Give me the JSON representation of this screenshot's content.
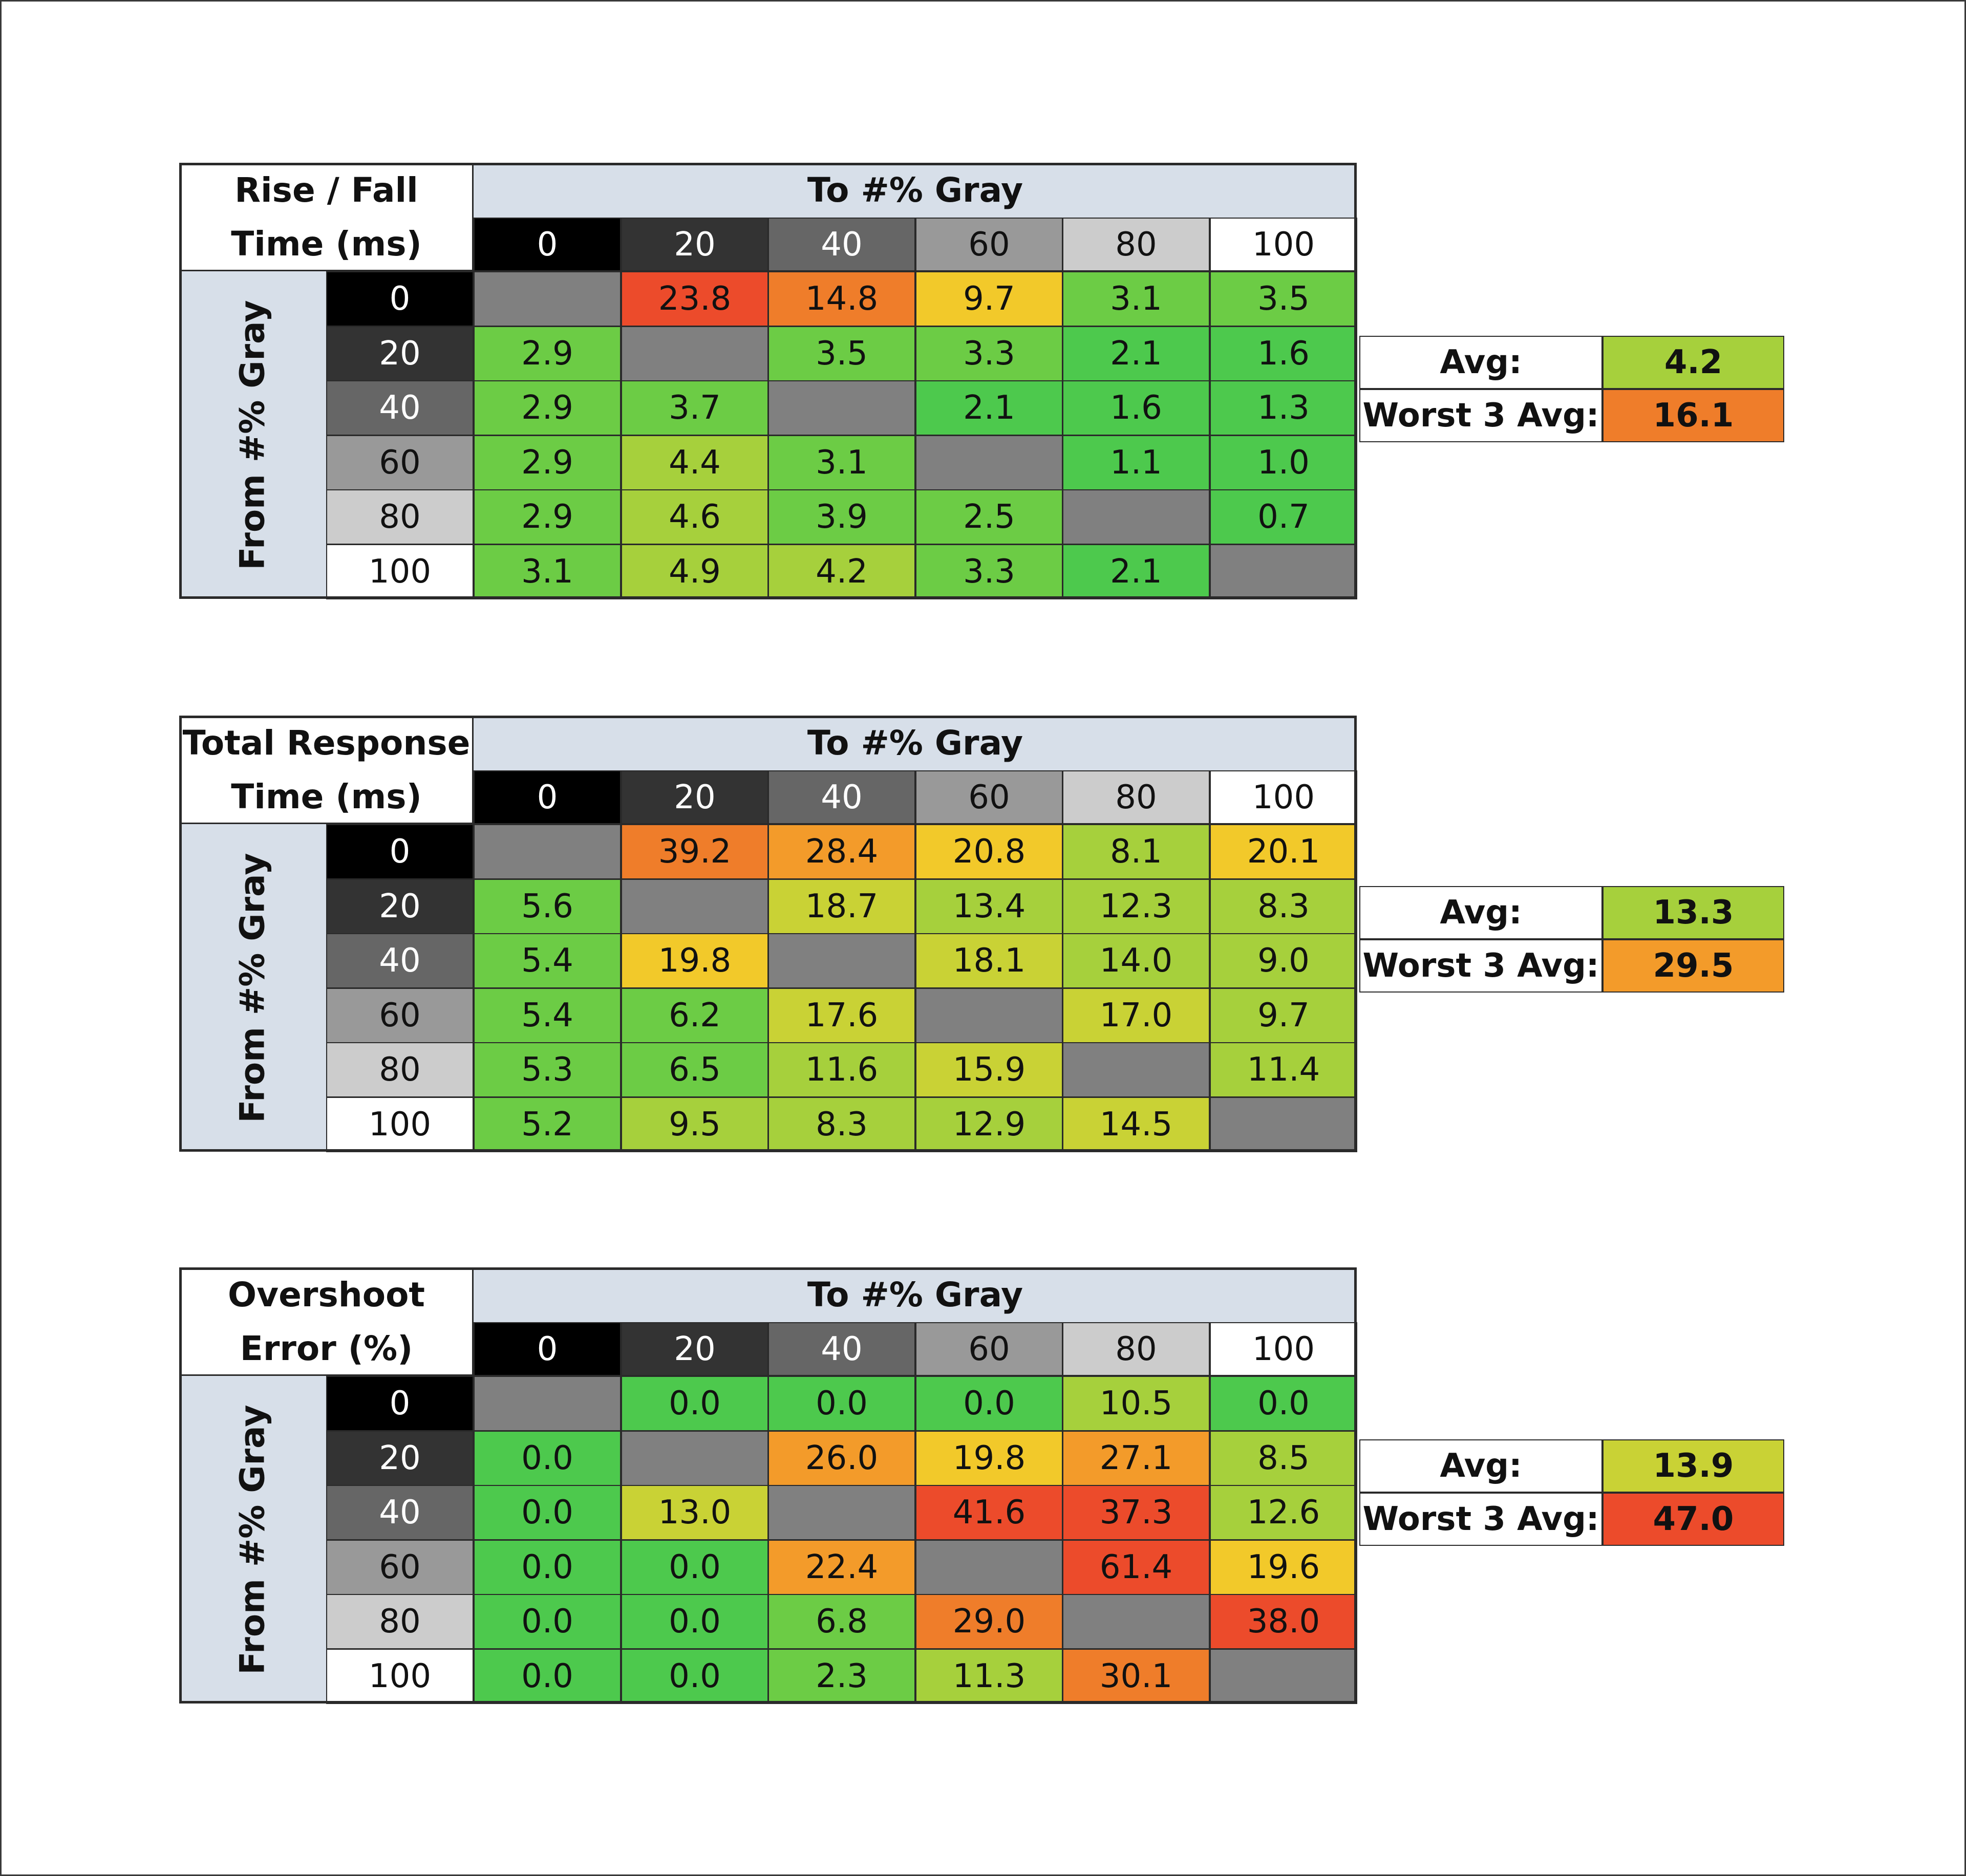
{
  "colors": {
    "band": "#d7dfe9",
    "diagonal": "#808080",
    "green_dark": "#4dc94d",
    "green": "#6ccc45",
    "yellow_green": "#a6d03c",
    "olive": "#c9d235",
    "yellow": "#f2c92a",
    "orange": "#f39b2a",
    "dark_orange": "#ef7d2a",
    "red": "#ec4b2b"
  },
  "tables": [
    {
      "title_line1": "Rise / Fall",
      "title_line2": "Time (ms)",
      "col_header": "To #% Gray",
      "row_header": "From #% Gray",
      "summary": {
        "avg_label": "Avg:",
        "avg_value": "4.2",
        "worst_label": "Worst 3 Avg:",
        "worst_value": "16.1"
      }
    },
    {
      "title_line1": "Total Response",
      "title_line2": "Time (ms)",
      "col_header": "To #% Gray",
      "row_header": "From #% Gray",
      "summary": {
        "avg_label": "Avg:",
        "avg_value": "13.3",
        "worst_label": "Worst 3 Avg:",
        "worst_value": "29.5"
      }
    },
    {
      "title_line1": "Overshoot",
      "title_line2": "Error (%)",
      "col_header": "To #% Gray",
      "row_header": "From #% Gray",
      "summary": {
        "avg_label": "Avg:",
        "avg_value": "13.9",
        "worst_label": "Worst 3 Avg:",
        "worst_value": "47.0"
      }
    }
  ],
  "chart_data": [
    {
      "type": "heatmap",
      "title": "Rise / Fall Time (ms)",
      "xlabel": "To #% Gray",
      "ylabel": "From #% Gray",
      "x": [
        "0",
        "20",
        "40",
        "60",
        "80",
        "100"
      ],
      "y": [
        "0",
        "20",
        "40",
        "60",
        "80",
        "100"
      ],
      "values": [
        [
          null,
          "23.8",
          "14.8",
          "9.7",
          "3.1",
          "3.5"
        ],
        [
          "2.9",
          null,
          "3.5",
          "3.3",
          "2.1",
          "1.6"
        ],
        [
          "2.9",
          "3.7",
          null,
          "2.1",
          "1.6",
          "1.3"
        ],
        [
          "2.9",
          "4.4",
          "3.1",
          null,
          "1.1",
          "1.0"
        ],
        [
          "2.9",
          "4.6",
          "3.9",
          "2.5",
          null,
          "0.7"
        ],
        [
          "3.1",
          "4.9",
          "4.2",
          "3.3",
          "2.1",
          null
        ]
      ],
      "colors": [
        [
          "diagonal",
          "red",
          "dark_orange",
          "yellow",
          "green",
          "green"
        ],
        [
          "green",
          "diagonal",
          "green",
          "green",
          "green_dark",
          "green_dark"
        ],
        [
          "green",
          "green",
          "diagonal",
          "green_dark",
          "green_dark",
          "green_dark"
        ],
        [
          "green",
          "yellow_green",
          "green",
          "diagonal",
          "green_dark",
          "green_dark"
        ],
        [
          "green",
          "yellow_green",
          "green",
          "green",
          "diagonal",
          "green_dark"
        ],
        [
          "green",
          "yellow_green",
          "yellow_green",
          "green",
          "green_dark",
          "diagonal"
        ]
      ]
    },
    {
      "type": "heatmap",
      "title": "Total Response Time (ms)",
      "xlabel": "To #% Gray",
      "ylabel": "From #% Gray",
      "x": [
        "0",
        "20",
        "40",
        "60",
        "80",
        "100"
      ],
      "y": [
        "0",
        "20",
        "40",
        "60",
        "80",
        "100"
      ],
      "values": [
        [
          null,
          "39.2",
          "28.4",
          "20.8",
          "8.1",
          "20.1"
        ],
        [
          "5.6",
          null,
          "18.7",
          "13.4",
          "12.3",
          "8.3"
        ],
        [
          "5.4",
          "19.8",
          null,
          "18.1",
          "14.0",
          "9.0"
        ],
        [
          "5.4",
          "6.2",
          "17.6",
          null,
          "17.0",
          "9.7"
        ],
        [
          "5.3",
          "6.5",
          "11.6",
          "15.9",
          null,
          "11.4"
        ],
        [
          "5.2",
          "9.5",
          "8.3",
          "12.9",
          "14.5",
          null
        ]
      ],
      "colors": [
        [
          "diagonal",
          "dark_orange",
          "orange",
          "yellow",
          "yellow_green",
          "yellow"
        ],
        [
          "green",
          "diagonal",
          "olive",
          "yellow_green",
          "yellow_green",
          "yellow_green"
        ],
        [
          "green",
          "yellow",
          "diagonal",
          "olive",
          "yellow_green",
          "yellow_green"
        ],
        [
          "green",
          "green",
          "olive",
          "diagonal",
          "olive",
          "yellow_green"
        ],
        [
          "green",
          "green",
          "yellow_green",
          "olive",
          "diagonal",
          "yellow_green"
        ],
        [
          "green",
          "yellow_green",
          "yellow_green",
          "yellow_green",
          "olive",
          "diagonal"
        ]
      ]
    },
    {
      "type": "heatmap",
      "title": "Overshoot Error (%)",
      "xlabel": "To #% Gray",
      "ylabel": "From #% Gray",
      "x": [
        "0",
        "20",
        "40",
        "60",
        "80",
        "100"
      ],
      "y": [
        "0",
        "20",
        "40",
        "60",
        "80",
        "100"
      ],
      "values": [
        [
          null,
          "0.0",
          "0.0",
          "0.0",
          "10.5",
          "0.0"
        ],
        [
          "0.0",
          null,
          "26.0",
          "19.8",
          "27.1",
          "8.5"
        ],
        [
          "0.0",
          "13.0",
          null,
          "41.6",
          "37.3",
          "12.6"
        ],
        [
          "0.0",
          "0.0",
          "22.4",
          null,
          "61.4",
          "19.6"
        ],
        [
          "0.0",
          "0.0",
          "6.8",
          "29.0",
          null,
          "38.0"
        ],
        [
          "0.0",
          "0.0",
          "2.3",
          "11.3",
          "30.1",
          null
        ]
      ],
      "colors": [
        [
          "diagonal",
          "green_dark",
          "green_dark",
          "green_dark",
          "yellow_green",
          "green_dark"
        ],
        [
          "green_dark",
          "diagonal",
          "orange",
          "yellow",
          "orange",
          "yellow_green"
        ],
        [
          "green_dark",
          "olive",
          "diagonal",
          "red",
          "red",
          "yellow_green"
        ],
        [
          "green_dark",
          "green_dark",
          "orange",
          "diagonal",
          "red",
          "yellow"
        ],
        [
          "green_dark",
          "green_dark",
          "green",
          "dark_orange",
          "diagonal",
          "red"
        ],
        [
          "green_dark",
          "green_dark",
          "green",
          "yellow_green",
          "dark_orange",
          "diagonal"
        ]
      ]
    }
  ]
}
